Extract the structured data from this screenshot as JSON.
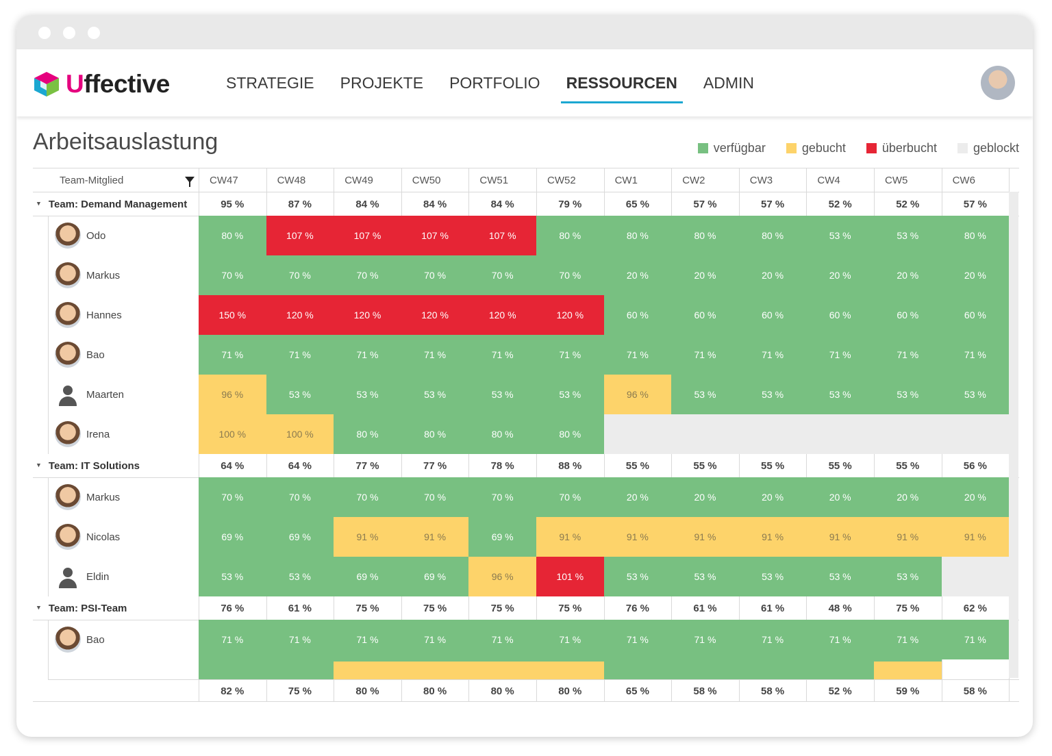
{
  "app": {
    "logo_text": "ffective",
    "logo_initial": "U"
  },
  "nav": {
    "items": [
      {
        "label": "STRATEGIE",
        "active": false
      },
      {
        "label": "PROJEKTE",
        "active": false
      },
      {
        "label": "PORTFOLIO",
        "active": false
      },
      {
        "label": "RESSOURCEN",
        "active": true
      },
      {
        "label": "ADMIN",
        "active": false
      }
    ]
  },
  "page": {
    "title": "Arbeitsauslastung"
  },
  "legend": [
    {
      "label": "verfügbar",
      "color": "#78c081"
    },
    {
      "label": "gebucht",
      "color": "#fdd36a"
    },
    {
      "label": "überbucht",
      "color": "#e62535"
    },
    {
      "label": "geblockt",
      "color": "#ececec"
    }
  ],
  "colors": {
    "g": "#78c081",
    "y": "#fdd36a",
    "r": "#e62535",
    "e": "#ececec"
  },
  "table": {
    "member_header": "Team-Mitglied",
    "weeks": [
      "CW47",
      "CW48",
      "CW49",
      "CW50",
      "CW51",
      "CW52",
      "CW1",
      "CW2",
      "CW3",
      "CW4",
      "CW5",
      "CW6"
    ],
    "teams": [
      {
        "name": "Team: Demand Management",
        "totals": [
          "95 %",
          "87 %",
          "84 %",
          "84 %",
          "84 %",
          "79 %",
          "65 %",
          "57 %",
          "57 %",
          "52 %",
          "52 %",
          "57 %"
        ],
        "members": [
          {
            "name": "Odo",
            "avatar": "odo-avatar",
            "cells": [
              [
                "80 %",
                "g"
              ],
              [
                "107 %",
                "r"
              ],
              [
                "107 %",
                "r"
              ],
              [
                "107 %",
                "r"
              ],
              [
                "107 %",
                "r"
              ],
              [
                "80 %",
                "g"
              ],
              [
                "80 %",
                "g"
              ],
              [
                "80 %",
                "g"
              ],
              [
                "80 %",
                "g"
              ],
              [
                "53 %",
                "g"
              ],
              [
                "53 %",
                "g"
              ],
              [
                "80 %",
                "g"
              ]
            ]
          },
          {
            "name": "Markus",
            "avatar": "markus-avatar",
            "cells": [
              [
                "70 %",
                "g"
              ],
              [
                "70 %",
                "g"
              ],
              [
                "70 %",
                "g"
              ],
              [
                "70 %",
                "g"
              ],
              [
                "70 %",
                "g"
              ],
              [
                "70 %",
                "g"
              ],
              [
                "20 %",
                "g"
              ],
              [
                "20 %",
                "g"
              ],
              [
                "20 %",
                "g"
              ],
              [
                "20 %",
                "g"
              ],
              [
                "20 %",
                "g"
              ],
              [
                "20 %",
                "g"
              ]
            ]
          },
          {
            "name": "Hannes",
            "avatar": "hannes-avatar",
            "cells": [
              [
                "150 %",
                "r"
              ],
              [
                "120 %",
                "r"
              ],
              [
                "120 %",
                "r"
              ],
              [
                "120 %",
                "r"
              ],
              [
                "120 %",
                "r"
              ],
              [
                "120 %",
                "r"
              ],
              [
                "60 %",
                "g"
              ],
              [
                "60 %",
                "g"
              ],
              [
                "60 %",
                "g"
              ],
              [
                "60 %",
                "g"
              ],
              [
                "60 %",
                "g"
              ],
              [
                "60 %",
                "g"
              ]
            ]
          },
          {
            "name": "Bao",
            "avatar": "bao-avatar",
            "cells": [
              [
                "71 %",
                "g"
              ],
              [
                "71 %",
                "g"
              ],
              [
                "71 %",
                "g"
              ],
              [
                "71 %",
                "g"
              ],
              [
                "71 %",
                "g"
              ],
              [
                "71 %",
                "g"
              ],
              [
                "71 %",
                "g"
              ],
              [
                "71 %",
                "g"
              ],
              [
                "71 %",
                "g"
              ],
              [
                "71 %",
                "g"
              ],
              [
                "71 %",
                "g"
              ],
              [
                "71 %",
                "g"
              ]
            ]
          },
          {
            "name": "Maarten",
            "avatar": "silhouette",
            "cells": [
              [
                "96 %",
                "y"
              ],
              [
                "53 %",
                "g"
              ],
              [
                "53 %",
                "g"
              ],
              [
                "53 %",
                "g"
              ],
              [
                "53 %",
                "g"
              ],
              [
                "53 %",
                "g"
              ],
              [
                "96 %",
                "y"
              ],
              [
                "53 %",
                "g"
              ],
              [
                "53 %",
                "g"
              ],
              [
                "53 %",
                "g"
              ],
              [
                "53 %",
                "g"
              ],
              [
                "53 %",
                "g"
              ]
            ]
          },
          {
            "name": "Irena",
            "avatar": "irena-avatar",
            "cells": [
              [
                "100 %",
                "y"
              ],
              [
                "100 %",
                "y"
              ],
              [
                "80 %",
                "g"
              ],
              [
                "80 %",
                "g"
              ],
              [
                "80 %",
                "g"
              ],
              [
                "80 %",
                "g"
              ],
              [
                "",
                "e"
              ],
              [
                "",
                "e"
              ],
              [
                "",
                "e"
              ],
              [
                "",
                "e"
              ],
              [
                "",
                "e"
              ],
              [
                "",
                "e"
              ]
            ]
          }
        ]
      },
      {
        "name": "Team: IT Solutions",
        "totals": [
          "64 %",
          "64 %",
          "77 %",
          "77 %",
          "78 %",
          "88 %",
          "55 %",
          "55 %",
          "55 %",
          "55 %",
          "55 %",
          "56 %"
        ],
        "members": [
          {
            "name": "Markus",
            "avatar": "markus-avatar",
            "cells": [
              [
                "70 %",
                "g"
              ],
              [
                "70 %",
                "g"
              ],
              [
                "70 %",
                "g"
              ],
              [
                "70 %",
                "g"
              ],
              [
                "70 %",
                "g"
              ],
              [
                "70 %",
                "g"
              ],
              [
                "20 %",
                "g"
              ],
              [
                "20 %",
                "g"
              ],
              [
                "20 %",
                "g"
              ],
              [
                "20 %",
                "g"
              ],
              [
                "20 %",
                "g"
              ],
              [
                "20 %",
                "g"
              ]
            ]
          },
          {
            "name": "Nicolas",
            "avatar": "nicolas-avatar",
            "cells": [
              [
                "69 %",
                "g"
              ],
              [
                "69 %",
                "g"
              ],
              [
                "91 %",
                "y"
              ],
              [
                "91 %",
                "y"
              ],
              [
                "69 %",
                "g"
              ],
              [
                "91 %",
                "y"
              ],
              [
                "91 %",
                "y"
              ],
              [
                "91 %",
                "y"
              ],
              [
                "91 %",
                "y"
              ],
              [
                "91 %",
                "y"
              ],
              [
                "91 %",
                "y"
              ],
              [
                "91 %",
                "y"
              ]
            ]
          },
          {
            "name": "Eldin",
            "avatar": "silhouette",
            "cells": [
              [
                "53 %",
                "g"
              ],
              [
                "53 %",
                "g"
              ],
              [
                "69 %",
                "g"
              ],
              [
                "69 %",
                "g"
              ],
              [
                "96 %",
                "y"
              ],
              [
                "101 %",
                "r"
              ],
              [
                "53 %",
                "g"
              ],
              [
                "53 %",
                "g"
              ],
              [
                "53 %",
                "g"
              ],
              [
                "53 %",
                "g"
              ],
              [
                "53 %",
                "g"
              ],
              [
                "",
                "e"
              ]
            ]
          }
        ]
      },
      {
        "name": "Team: PSI-Team",
        "totals": [
          "76 %",
          "61 %",
          "75 %",
          "75 %",
          "75 %",
          "75 %",
          "76 %",
          "61 %",
          "61 %",
          "48 %",
          "75 %",
          "62 %"
        ],
        "members": [
          {
            "name": "Bao",
            "avatar": "bao-avatar",
            "cells": [
              [
                "71 %",
                "g"
              ],
              [
                "71 %",
                "g"
              ],
              [
                "71 %",
                "g"
              ],
              [
                "71 %",
                "g"
              ],
              [
                "71 %",
                "g"
              ],
              [
                "71 %",
                "g"
              ],
              [
                "71 %",
                "g"
              ],
              [
                "71 %",
                "g"
              ],
              [
                "71 %",
                "g"
              ],
              [
                "71 %",
                "g"
              ],
              [
                "71 %",
                "g"
              ],
              [
                "71 %",
                "g"
              ]
            ]
          }
        ],
        "partial_row_colors": [
          "g",
          "g",
          "y",
          "y",
          "y",
          "y",
          "g",
          "g",
          "g",
          "g",
          "y",
          "e"
        ]
      }
    ],
    "grand_totals": [
      "82 %",
      "75 %",
      "80 %",
      "80 %",
      "80 %",
      "80 %",
      "65 %",
      "58 %",
      "58 %",
      "52 %",
      "59 %",
      "58 %"
    ]
  }
}
